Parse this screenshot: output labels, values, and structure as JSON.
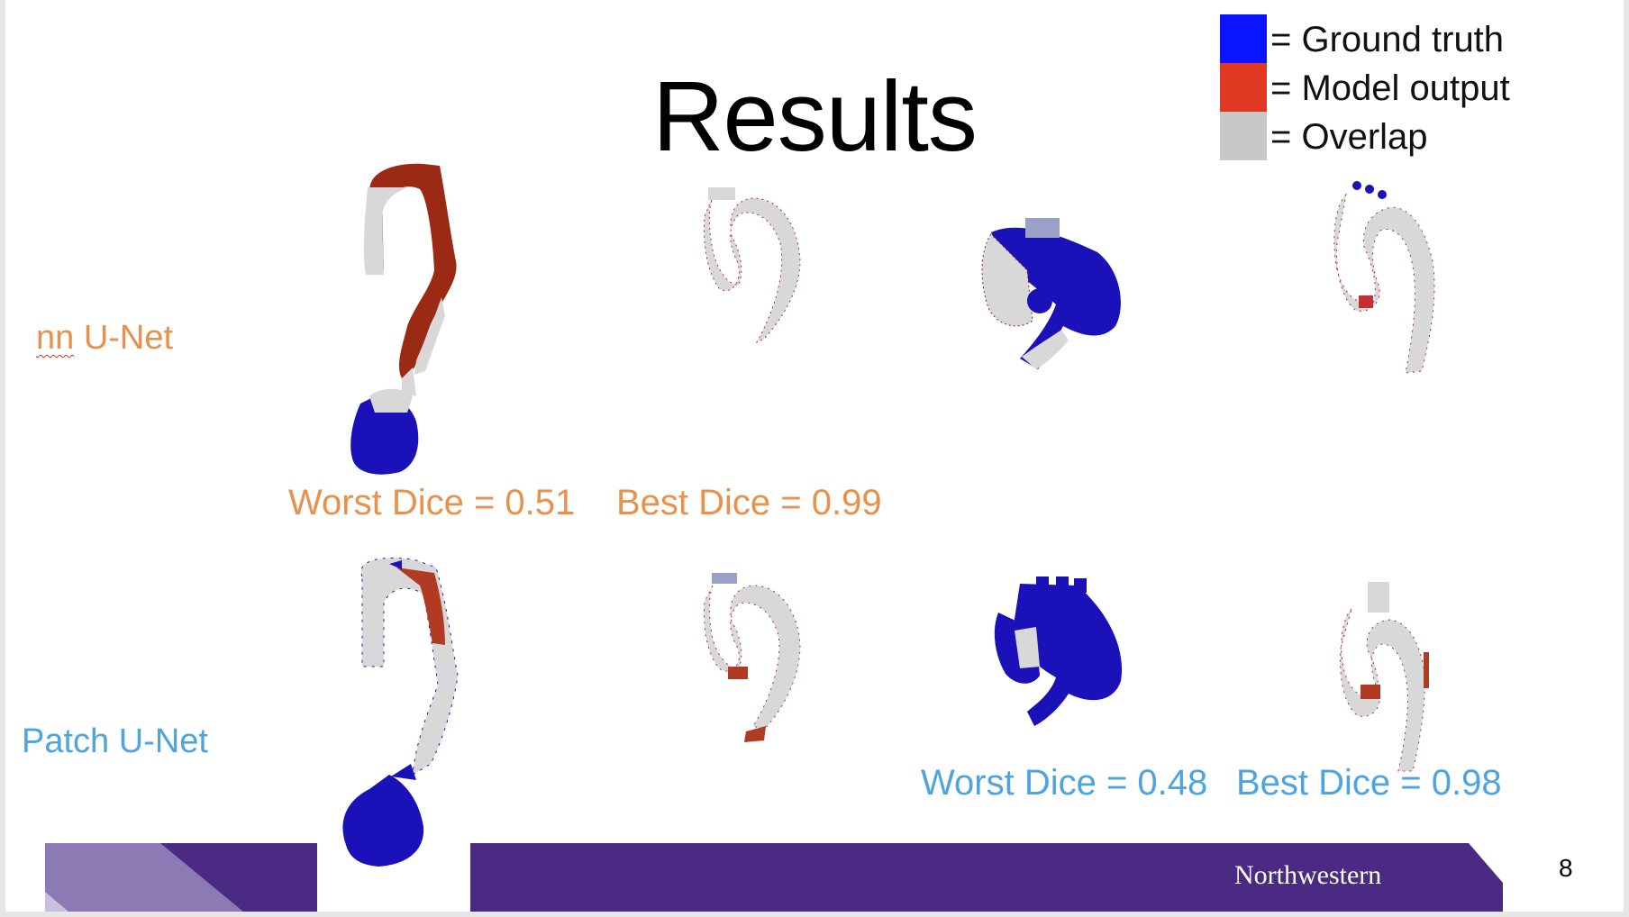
{
  "slide": {
    "title": "Results",
    "page_number": "8",
    "footer_brand": "Northwestern"
  },
  "legend": [
    {
      "label": "= Ground truth",
      "color": "#0a14ff"
    },
    {
      "label": "= Model output",
      "color": "#e23a22"
    },
    {
      "label": "= Overlap",
      "color": "#c8c8c8"
    }
  ],
  "rows": {
    "nn_prefix": "nn",
    "nn_suffix": " U-Net",
    "patch": "Patch U-Net"
  },
  "scores": {
    "nn_worst": "Worst Dice = 0.51",
    "nn_best": "Best Dice = 0.99",
    "patch_worst": "Worst Dice = 0.48",
    "patch_best": "Best Dice = 0.98"
  },
  "colors": {
    "ground_truth": "#1a12b8",
    "model_output": "#9a2a14",
    "overlap": "#d8d8d8",
    "nn_label": "#e8914d",
    "patch_label": "#4ea4df",
    "footer": "#4b2a84",
    "footer_light": "#8b7ab4"
  }
}
